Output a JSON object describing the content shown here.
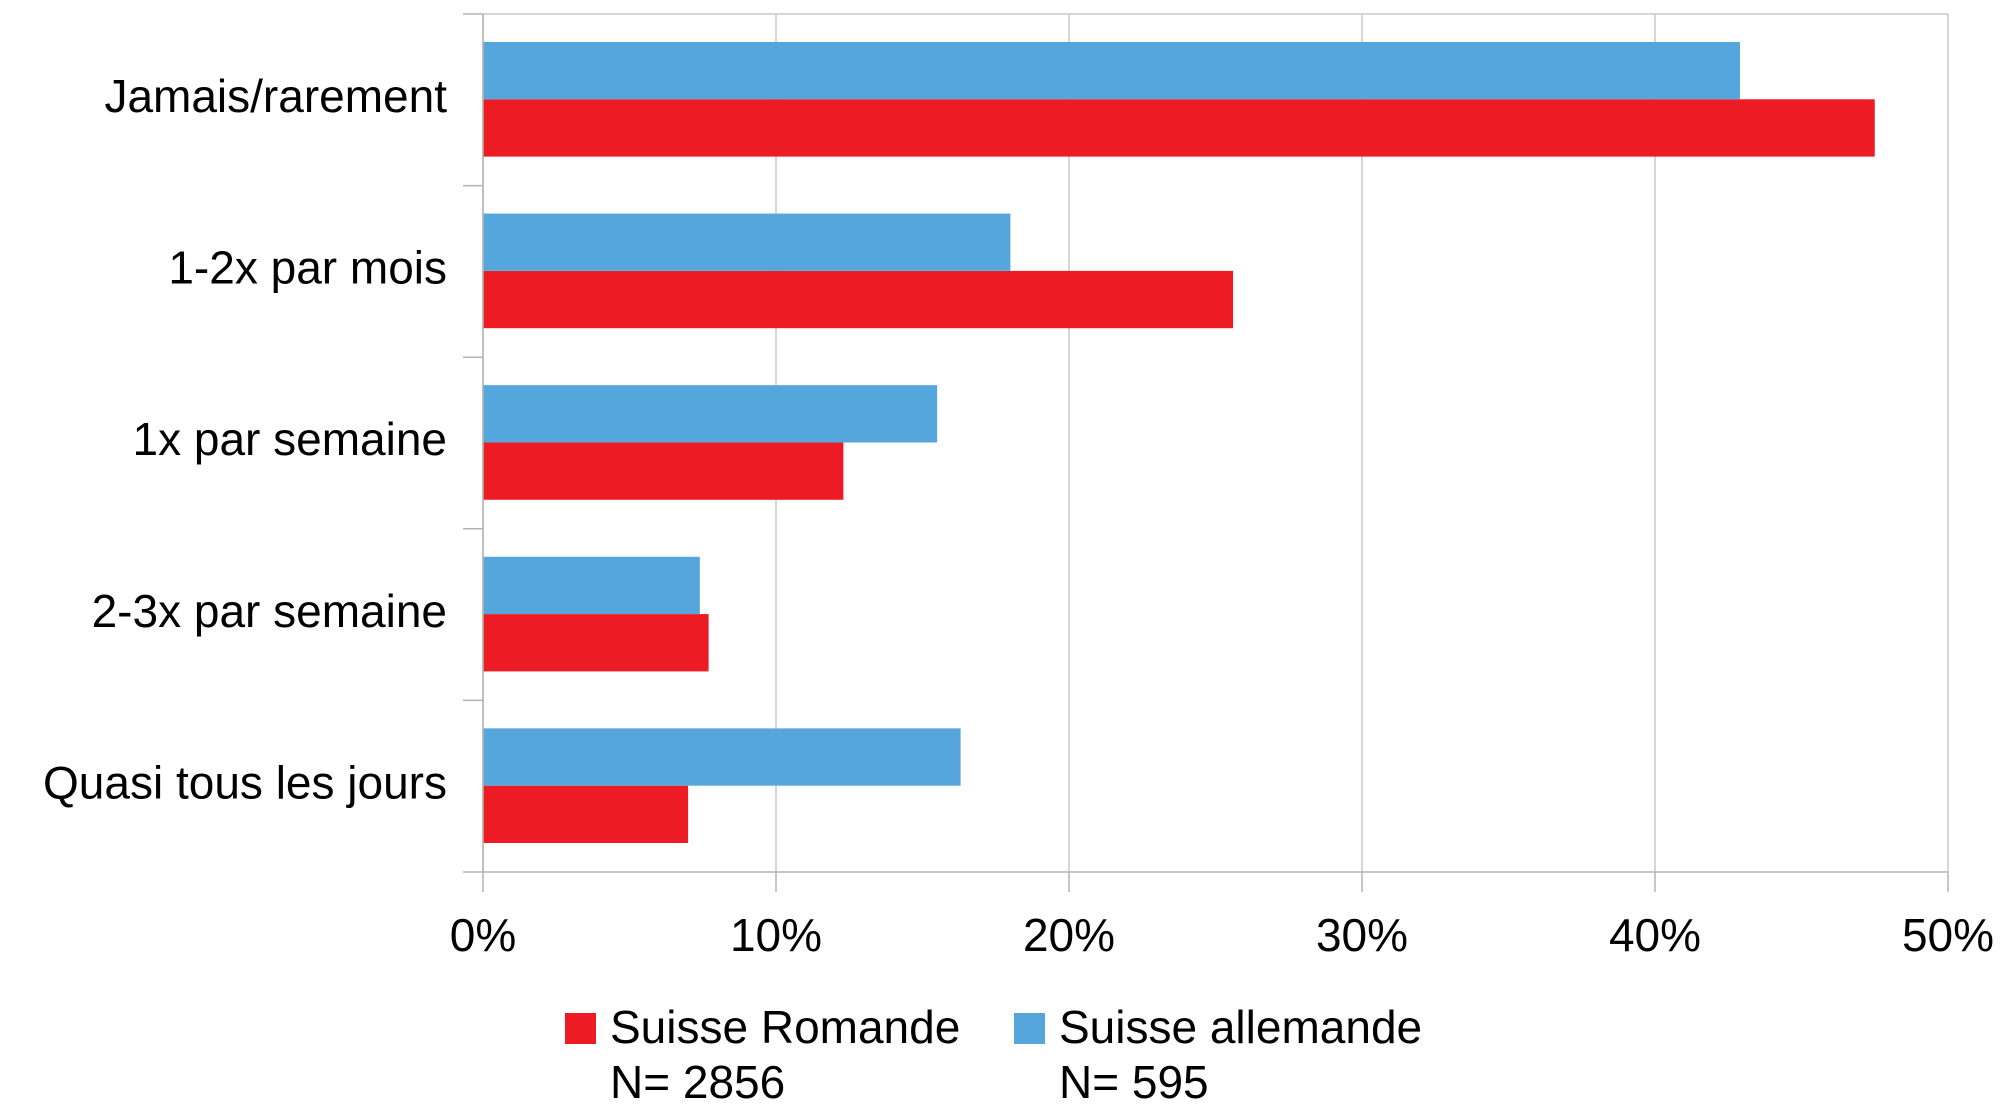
{
  "chart_data": {
    "type": "hbar",
    "categories": [
      "Jamais/rarement",
      "1-2x par mois",
      "1x par semaine",
      "2-3x par semaine",
      "Quasi tous les jours"
    ],
    "series": [
      {
        "name": "Suisse Romande",
        "note": "N= 2856",
        "color": "#ed1c24",
        "values": [
          47.5,
          25.6,
          12.3,
          7.7,
          7.0
        ]
      },
      {
        "name": "Suisse allemande",
        "note": "N= 595",
        "color": "#55a6dc",
        "values": [
          42.9,
          18.0,
          15.5,
          7.4,
          16.3
        ]
      }
    ],
    "xlim": [
      0,
      50
    ],
    "xticks": [
      {
        "value": 0,
        "label": "0%"
      },
      {
        "value": 10,
        "label": "10%"
      },
      {
        "value": 20,
        "label": "20%"
      },
      {
        "value": 30,
        "label": "30%"
      },
      {
        "value": 40,
        "label": "40%"
      },
      {
        "value": 50,
        "label": "50%"
      }
    ],
    "grid": true,
    "legend": "bottom"
  }
}
